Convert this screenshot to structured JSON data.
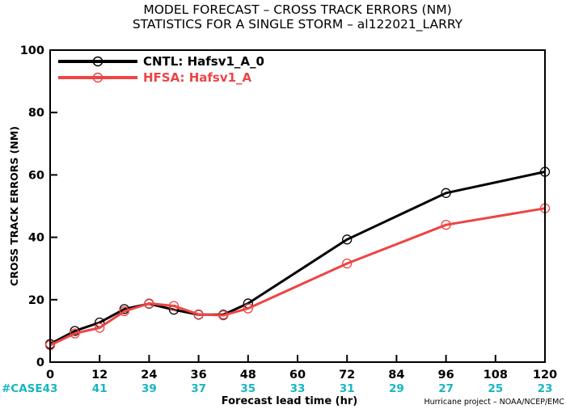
{
  "chart_data": {
    "type": "line",
    "title_line1": "MODEL FORECAST – CROSS TRACK ERRORS (NM)",
    "title_line2": "STATISTICS FOR A SINGLE STORM – al122021_LARRY",
    "xlabel": "Forecast lead time (hr)",
    "ylabel": "CROSS TRACK ERRORS (NM)",
    "xlim": [
      0,
      120
    ],
    "ylim": [
      0,
      100
    ],
    "xticks": [
      0,
      12,
      24,
      36,
      48,
      60,
      72,
      84,
      96,
      108,
      120
    ],
    "yticks": [
      0,
      20,
      40,
      60,
      80,
      100
    ],
    "grid": false,
    "legend_position": "top-left",
    "case_label": "#CASE",
    "cases": [
      {
        "x": 0,
        "n": "43"
      },
      {
        "x": 12,
        "n": "41"
      },
      {
        "x": 24,
        "n": "39"
      },
      {
        "x": 36,
        "n": "37"
      },
      {
        "x": 48,
        "n": "35"
      },
      {
        "x": 60,
        "n": "33"
      },
      {
        "x": 72,
        "n": "31"
      },
      {
        "x": 84,
        "n": "29"
      },
      {
        "x": 96,
        "n": "27"
      },
      {
        "x": 108,
        "n": "25"
      },
      {
        "x": 120,
        "n": "23"
      }
    ],
    "series": [
      {
        "name": "CNTL: Hafsv1_A_0",
        "color": "#000000",
        "x": [
          0,
          6,
          12,
          18,
          24,
          30,
          36,
          42,
          48,
          72,
          96,
          120
        ],
        "y": [
          5.8,
          10.0,
          12.7,
          17.0,
          18.7,
          16.8,
          15.2,
          15.2,
          18.8,
          39.3,
          54.2,
          61.0
        ]
      },
      {
        "name": "HFSA: Hafsv1_A",
        "color": "#ee4444",
        "x": [
          0,
          6,
          12,
          18,
          24,
          30,
          36,
          42,
          48,
          72,
          96,
          120
        ],
        "y": [
          5.4,
          9.2,
          11.0,
          16.3,
          18.8,
          18.0,
          15.3,
          15.0,
          17.2,
          31.6,
          44.0,
          49.3
        ]
      }
    ],
    "credit": "Hurricane project – NOAA/NCEP/EMC"
  }
}
